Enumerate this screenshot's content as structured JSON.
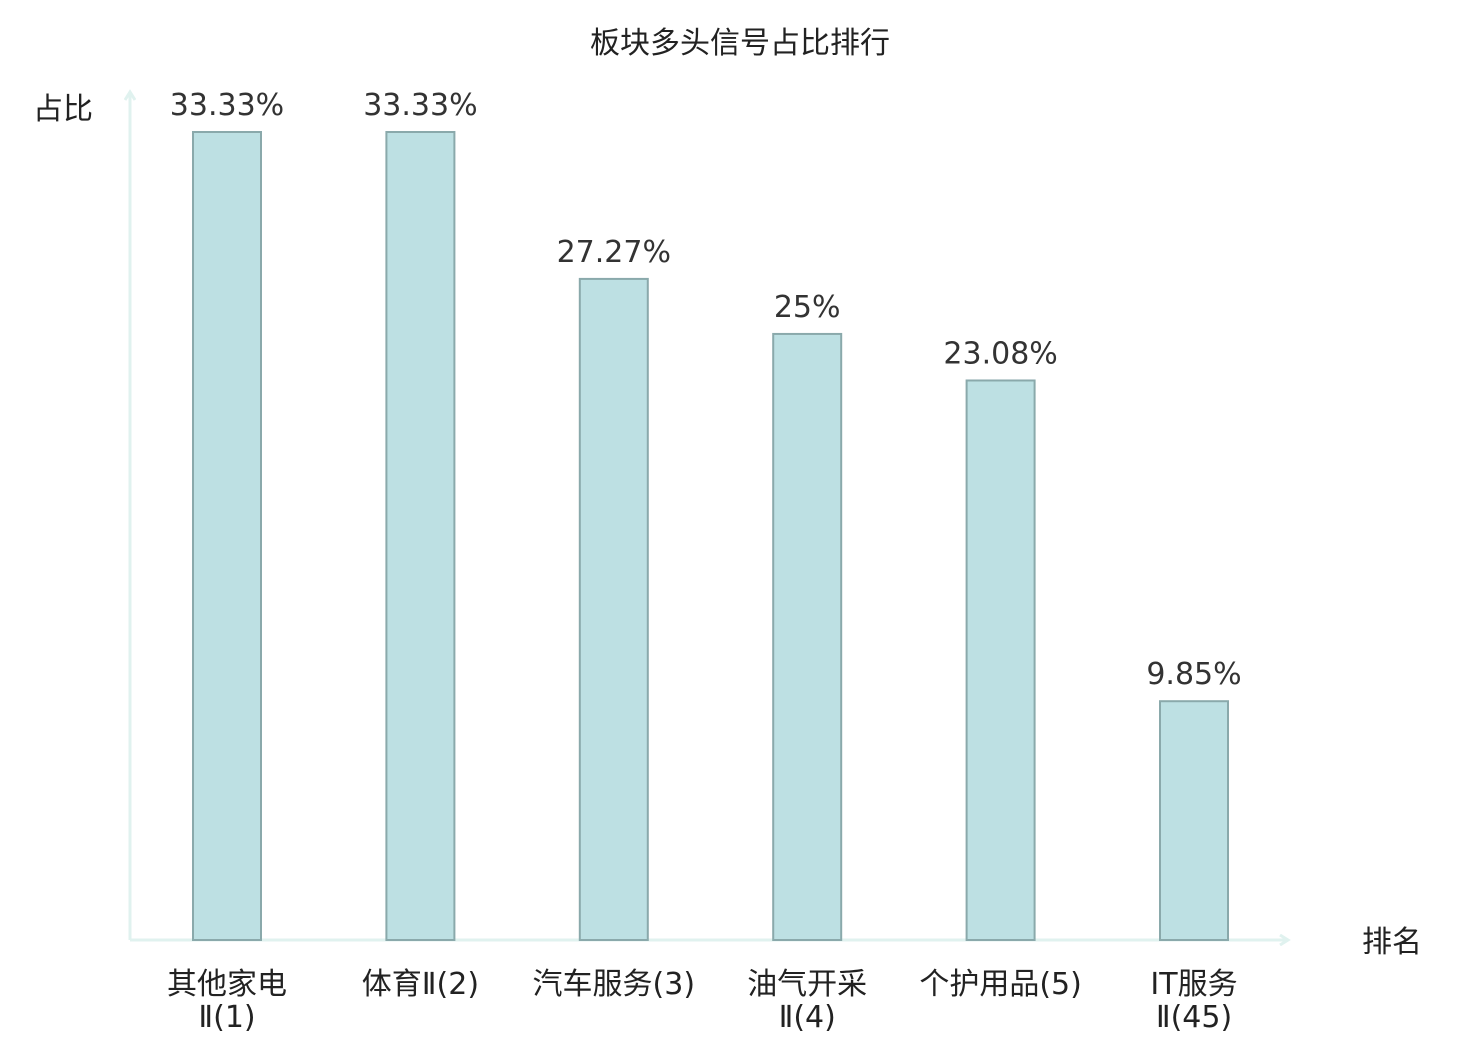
{
  "chart_data": {
    "type": "bar",
    "title": "板块多头信号占比排行",
    "ylabel": "占比",
    "xlabel": "排名",
    "ylim": [
      0,
      35
    ],
    "categories": [
      [
        "其他家电",
        "Ⅱ(1)"
      ],
      [
        "体育Ⅱ(2)"
      ],
      [
        "汽车服务(3)"
      ],
      [
        "油气开采",
        "Ⅱ(4)"
      ],
      [
        "个护用品(5)"
      ],
      [
        "IT服务",
        "Ⅱ(45)"
      ]
    ],
    "values": [
      33.33,
      33.33,
      27.27,
      25,
      23.08,
      9.85
    ],
    "value_labels": [
      "33.33%",
      "33.33%",
      "27.27%",
      "25%",
      "23.08%",
      "9.85%"
    ],
    "highlight_index": 5,
    "colors": {
      "bar_fill": "#bde0e3",
      "bar_stroke": "#8aa9ab",
      "axis": "#e0f2ef",
      "text": "#222222",
      "highlight_text": "#e0141d"
    },
    "grid": false
  }
}
